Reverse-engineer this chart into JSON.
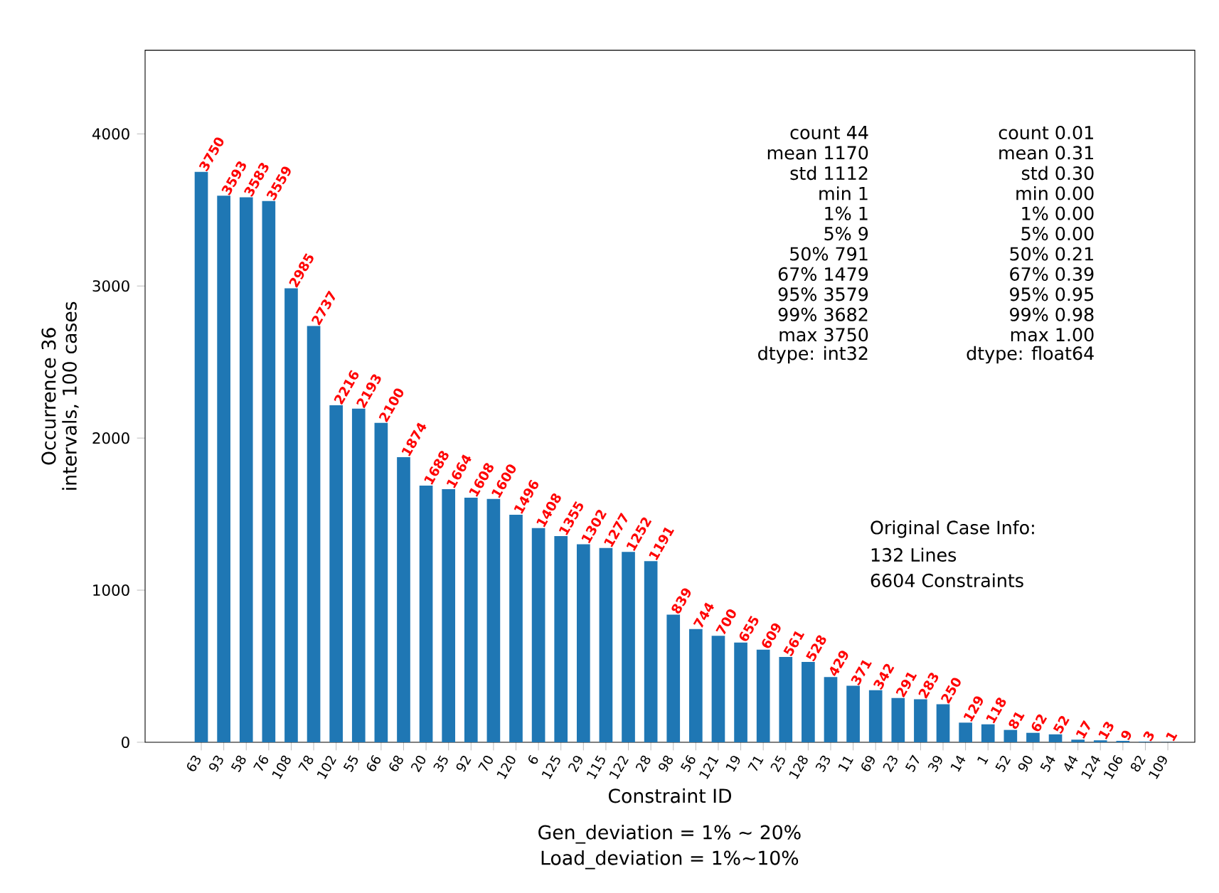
{
  "chart_data": {
    "type": "bar",
    "xlabel": "Constraint ID",
    "ylabel": "Occurrence 36 intervals, 100 cases",
    "categories": [
      "63",
      "93",
      "58",
      "76",
      "108",
      "78",
      "102",
      "55",
      "66",
      "68",
      "20",
      "35",
      "92",
      "70",
      "120",
      "6",
      "125",
      "29",
      "115",
      "122",
      "28",
      "98",
      "56",
      "121",
      "19",
      "71",
      "25",
      "128",
      "33",
      "11",
      "69",
      "23",
      "57",
      "39",
      "14",
      "1",
      "52",
      "90",
      "54",
      "44",
      "124",
      "106",
      "82",
      "109"
    ],
    "values": [
      3750,
      3593,
      3583,
      3559,
      2985,
      2737,
      2216,
      2193,
      2100,
      1874,
      1688,
      1664,
      1608,
      1600,
      1496,
      1408,
      1355,
      1302,
      1277,
      1252,
      1191,
      839,
      744,
      700,
      655,
      609,
      561,
      528,
      429,
      371,
      342,
      291,
      283,
      250,
      129,
      118,
      81,
      62,
      52,
      17,
      13,
      9,
      3,
      1
    ],
    "color": "#1f77b4",
    "data_labels": true,
    "ylim": [
      0,
      4550
    ],
    "yticks": [
      0,
      1000,
      2000,
      3000,
      4000
    ],
    "grid": false,
    "annotations": [
      "count 44",
      "mean 1170",
      "std 1112",
      "min 1",
      "1% 1",
      "5% 9",
      "50% 791",
      "67% 1479",
      "95% 3579",
      "99% 3682",
      "max 3750",
      "dtype: int32",
      "count 0.01",
      "mean 0.31",
      "std 0.30",
      "min 0.00",
      "1% 0.00",
      "5% 0.00",
      "50% 0.21",
      "67% 0.39",
      "95% 0.95",
      "99% 0.98",
      "max 1.00",
      "dtype: float64",
      "Original Case Info:",
      "132 Lines",
      "6604 Constraints",
      "Gen_deviation = 1% ~ 20%",
      "Load_deviation = 1%~10%"
    ]
  }
}
